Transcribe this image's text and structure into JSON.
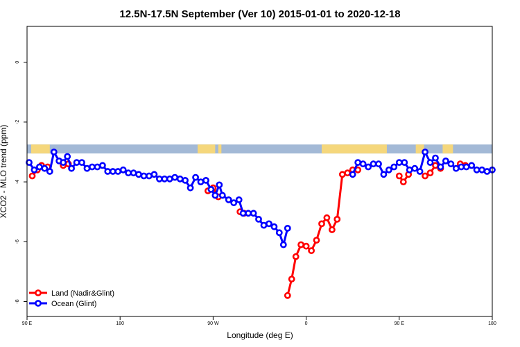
{
  "chart_data": {
    "type": "line",
    "title": "12.5N-17.5N September (Ver 10)   2015-01-01 to 2020-12-18",
    "xlabel": "Longitude (deg E)",
    "ylabel": "XCO2 - MLO trend (ppm)",
    "xlim": [
      90,
      540
    ],
    "ylim": [
      -8.5,
      1.2
    ],
    "x_ticks": [
      90,
      180,
      270,
      360,
      450,
      540
    ],
    "x_tick_labels": [
      "90 E",
      "180",
      "90 W",
      "0",
      "90 E",
      "180"
    ],
    "y_ticks": [
      0,
      -2,
      -4,
      -6,
      -8
    ],
    "y_tick_labels": [
      "0",
      "-2",
      "-4",
      "-6",
      "-8"
    ],
    "grid": false,
    "legend_position": "bottom-left",
    "colors": {
      "land": "#ff0000",
      "ocean": "#0000ff",
      "map_ocean": "#a3b9d6",
      "map_land": "#f5d77c"
    },
    "land_mask": {
      "y_top": -2.75,
      "y_bottom": -3.05,
      "land_spans": [
        [
          94,
          112
        ],
        [
          255,
          272
        ],
        [
          275,
          278
        ],
        [
          375,
          438
        ],
        [
          466,
          474
        ],
        [
          492,
          502
        ]
      ]
    },
    "series": [
      {
        "name": "Land (Nadir&Glint)",
        "color": "#ff0000",
        "segments": [
          [
            [
              95,
              -3.8
            ],
            [
              100,
              -3.6
            ],
            [
              104,
              -3.45
            ],
            [
              110,
              -3.5
            ]
          ],
          [
            [
              125,
              -3.45
            ],
            [
              130,
              -3.4
            ]
          ],
          [
            [
              265,
              -4.3
            ],
            [
              270,
              -4.2
            ],
            [
              275,
              -4.5
            ]
          ],
          [
            [
              296,
              -5.0
            ],
            [
              300,
              -5.05
            ]
          ],
          [
            [
              342,
              -7.8
            ],
            [
              346,
              -7.25
            ],
            [
              350,
              -6.5
            ],
            [
              355,
              -6.1
            ],
            [
              360,
              -6.15
            ],
            [
              365,
              -6.3
            ],
            [
              370,
              -5.95
            ],
            [
              375,
              -5.4
            ],
            [
              380,
              -5.2
            ],
            [
              385,
              -5.6
            ],
            [
              390,
              -5.25
            ],
            [
              395,
              -3.75
            ],
            [
              400,
              -3.7
            ],
            [
              405,
              -3.6
            ],
            [
              410,
              -3.6
            ]
          ],
          [
            [
              450,
              -3.8
            ],
            [
              454,
              -4.0
            ],
            [
              459,
              -3.75
            ]
          ],
          [
            [
              475,
              -3.8
            ],
            [
              480,
              -3.7
            ],
            [
              485,
              -3.45
            ],
            [
              490,
              -3.55
            ]
          ],
          [
            [
              509,
              -3.4
            ],
            [
              514,
              -3.45
            ]
          ]
        ]
      },
      {
        "name": "Ocean (Glint)",
        "color": "#0000ff",
        "points": [
          [
            92,
            -3.35
          ],
          [
            97,
            -3.6
          ],
          [
            102,
            -3.5
          ],
          [
            107,
            -3.55
          ],
          [
            112,
            -3.65
          ],
          [
            116,
            -3.0
          ],
          [
            121,
            -3.3
          ],
          [
            125,
            -3.35
          ],
          [
            129,
            -3.15
          ],
          [
            133,
            -3.55
          ],
          [
            138,
            -3.35
          ],
          [
            143,
            -3.35
          ],
          [
            148,
            -3.55
          ],
          [
            153,
            -3.5
          ],
          [
            158,
            -3.5
          ],
          [
            163,
            -3.45
          ],
          [
            168,
            -3.65
          ],
          [
            173,
            -3.65
          ],
          [
            178,
            -3.65
          ],
          [
            183,
            -3.6
          ],
          [
            188,
            -3.7
          ],
          [
            193,
            -3.7
          ],
          [
            198,
            -3.75
          ],
          [
            203,
            -3.8
          ],
          [
            208,
            -3.8
          ],
          [
            213,
            -3.75
          ],
          [
            218,
            -3.9
          ],
          [
            223,
            -3.9
          ],
          [
            228,
            -3.9
          ],
          [
            233,
            -3.85
          ],
          [
            238,
            -3.9
          ],
          [
            243,
            -3.95
          ],
          [
            248,
            -4.2
          ],
          [
            253,
            -3.85
          ],
          [
            258,
            -4.0
          ],
          [
            263,
            -3.95
          ],
          [
            268,
            -4.25
          ],
          [
            272,
            -4.45
          ],
          [
            276,
            -4.1
          ],
          [
            279,
            -4.45
          ],
          [
            285,
            -4.6
          ],
          [
            290,
            -4.7
          ],
          [
            295,
            -4.6
          ],
          [
            299,
            -5.05
          ],
          [
            304,
            -5.05
          ],
          [
            309,
            -5.05
          ],
          [
            314,
            -5.25
          ],
          [
            319,
            -5.45
          ],
          [
            324,
            -5.4
          ],
          [
            329,
            -5.5
          ],
          [
            334,
            -5.7
          ],
          [
            338,
            -6.1
          ],
          [
            342,
            -5.55
          ],
          null,
          [
            405,
            -3.75
          ],
          [
            410,
            -3.35
          ],
          [
            415,
            -3.4
          ],
          [
            420,
            -3.5
          ],
          [
            425,
            -3.4
          ],
          [
            430,
            -3.4
          ],
          [
            435,
            -3.75
          ],
          [
            440,
            -3.6
          ],
          [
            445,
            -3.5
          ],
          [
            450,
            -3.35
          ],
          [
            455,
            -3.35
          ],
          [
            460,
            -3.6
          ],
          [
            465,
            -3.55
          ],
          [
            470,
            -3.65
          ],
          [
            475,
            -3.0
          ],
          [
            480,
            -3.35
          ],
          [
            485,
            -3.2
          ],
          [
            490,
            -3.5
          ],
          [
            495,
            -3.3
          ],
          [
            500,
            -3.4
          ],
          [
            505,
            -3.55
          ],
          [
            510,
            -3.5
          ],
          [
            515,
            -3.5
          ],
          [
            520,
            -3.45
          ],
          [
            525,
            -3.6
          ],
          [
            530,
            -3.6
          ],
          [
            535,
            -3.65
          ],
          [
            540,
            -3.6
          ]
        ]
      }
    ]
  }
}
